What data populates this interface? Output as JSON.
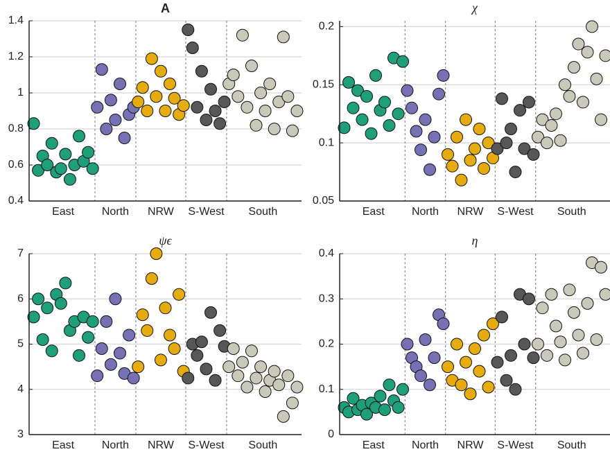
{
  "chart_data": [
    {
      "type": "scatter",
      "title": "A",
      "title_style": "bold",
      "ylim": [
        0.4,
        1.4
      ],
      "yticks": [
        0.4,
        0.6,
        0.8,
        1,
        1.2,
        1.4
      ],
      "xlim": [
        0,
        60
      ],
      "grid": true,
      "series": [
        {
          "name": "East",
          "color": "#1f9e7a",
          "x": [
            1,
            2,
            3,
            4,
            5,
            6,
            7,
            8,
            9,
            10,
            11,
            12,
            13,
            14
          ],
          "values": [
            0.83,
            0.57,
            0.65,
            0.6,
            0.72,
            0.56,
            0.58,
            0.66,
            0.52,
            0.6,
            0.76,
            0.62,
            0.67,
            0.58
          ]
        },
        {
          "name": "North",
          "color": "#7671b4",
          "x": [
            15,
            16,
            17,
            18,
            19,
            20,
            21,
            22,
            23
          ],
          "values": [
            0.92,
            1.13,
            0.8,
            0.96,
            0.85,
            1.05,
            0.75,
            0.88,
            0.92
          ]
        },
        {
          "name": "NRW",
          "color": "#e5ab0f",
          "x": [
            24,
            25,
            26,
            27,
            28,
            29,
            30,
            31,
            32,
            33,
            34
          ],
          "values": [
            0.95,
            1.03,
            0.9,
            1.19,
            0.98,
            1.12,
            0.9,
            1.05,
            0.97,
            0.88,
            0.93
          ]
        },
        {
          "name": "S-West",
          "color": "#575757",
          "x": [
            35,
            36,
            37,
            38,
            39,
            40,
            41,
            42,
            43
          ],
          "values": [
            1.35,
            1.25,
            0.92,
            1.12,
            0.85,
            1.02,
            0.9,
            0.83,
            0.95
          ]
        },
        {
          "name": "South",
          "color": "#c9c9b9",
          "x": [
            44,
            45,
            46,
            47,
            48,
            49,
            50,
            51,
            52,
            53,
            54,
            55,
            56,
            57,
            58,
            59
          ],
          "values": [
            1.05,
            1.1,
            0.98,
            1.32,
            0.92,
            1.15,
            0.82,
            1.0,
            0.9,
            1.05,
            0.8,
            0.95,
            1.31,
            0.98,
            0.79,
            0.9
          ]
        }
      ]
    },
    {
      "type": "scatter",
      "title": "χ",
      "title_style": "italic",
      "ylim": [
        0.05,
        0.205
      ],
      "yticks": [
        0.05,
        0.1,
        0.15,
        0.2
      ],
      "xlim": [
        0,
        60
      ],
      "grid": true,
      "series": [
        {
          "name": "East",
          "color": "#1f9e7a",
          "x": [
            1,
            2,
            3,
            4,
            5,
            6,
            7,
            8,
            9,
            10,
            11,
            12,
            13,
            14
          ],
          "values": [
            0.113,
            0.152,
            0.13,
            0.145,
            0.12,
            0.14,
            0.108,
            0.158,
            0.128,
            0.135,
            0.115,
            0.173,
            0.125,
            0.17
          ]
        },
        {
          "name": "North",
          "color": "#7671b4",
          "x": [
            15,
            16,
            17,
            18,
            19,
            20,
            21,
            22,
            23
          ],
          "values": [
            0.145,
            0.13,
            0.11,
            0.094,
            0.12,
            0.077,
            0.105,
            0.142,
            0.158
          ]
        },
        {
          "name": "NRW",
          "color": "#e5ab0f",
          "x": [
            24,
            25,
            26,
            27,
            28,
            29,
            30,
            31,
            32,
            33,
            34
          ],
          "values": [
            0.09,
            0.08,
            0.105,
            0.068,
            0.12,
            0.085,
            0.095,
            0.112,
            0.078,
            0.1,
            0.087
          ]
        },
        {
          "name": "S-West",
          "color": "#575757",
          "x": [
            35,
            36,
            37,
            38,
            39,
            40,
            41,
            42,
            43
          ],
          "values": [
            0.095,
            0.138,
            0.1,
            0.112,
            0.075,
            0.128,
            0.095,
            0.135,
            0.09
          ]
        },
        {
          "name": "South",
          "color": "#c9c9b9",
          "x": [
            44,
            45,
            46,
            47,
            48,
            49,
            50,
            51,
            52,
            53,
            54,
            55,
            56,
            57,
            58,
            59
          ],
          "values": [
            0.105,
            0.12,
            0.1,
            0.115,
            0.125,
            0.102,
            0.15,
            0.14,
            0.165,
            0.185,
            0.135,
            0.178,
            0.2,
            0.155,
            0.12,
            0.175
          ]
        }
      ]
    },
    {
      "type": "scatter",
      "title": "ψϵ",
      "title_style": "italic",
      "ylim": [
        3,
        7
      ],
      "yticks": [
        3,
        4,
        5,
        6,
        7
      ],
      "xlim": [
        0,
        60
      ],
      "grid": true,
      "series": [
        {
          "name": "East",
          "color": "#1f9e7a",
          "x": [
            1,
            2,
            3,
            4,
            5,
            6,
            7,
            8,
            9,
            10,
            11,
            12,
            13,
            14
          ],
          "values": [
            5.6,
            6.0,
            5.1,
            5.8,
            4.85,
            6.1,
            5.9,
            6.35,
            5.3,
            5.5,
            4.75,
            5.6,
            5.15,
            5.5
          ]
        },
        {
          "name": "North",
          "color": "#7671b4",
          "x": [
            15,
            16,
            17,
            18,
            19,
            20,
            21,
            22,
            23
          ],
          "values": [
            4.3,
            4.9,
            5.5,
            4.55,
            6.0,
            4.8,
            4.35,
            5.2,
            4.25
          ]
        },
        {
          "name": "NRW",
          "color": "#e5ab0f",
          "x": [
            24,
            25,
            26,
            27,
            28,
            29,
            30,
            31,
            32,
            33,
            34
          ],
          "values": [
            4.5,
            5.65,
            5.3,
            6.45,
            7.0,
            4.65,
            5.8,
            5.2,
            4.9,
            6.1,
            4.4
          ]
        },
        {
          "name": "S-West",
          "color": "#575757",
          "x": [
            35,
            36,
            37,
            38,
            39,
            40,
            41,
            42,
            43
          ],
          "values": [
            4.25,
            5.0,
            4.75,
            5.05,
            4.45,
            5.7,
            4.2,
            5.3,
            4.95
          ]
        },
        {
          "name": "South",
          "color": "#c9c9b9",
          "x": [
            44,
            45,
            46,
            47,
            48,
            49,
            50,
            51,
            52,
            53,
            54,
            55,
            56,
            57,
            58,
            59
          ],
          "values": [
            4.5,
            4.9,
            4.3,
            4.6,
            4.05,
            4.85,
            4.25,
            4.5,
            3.95,
            4.2,
            4.4,
            4.1,
            3.4,
            4.3,
            3.7,
            4.05
          ]
        }
      ]
    },
    {
      "type": "scatter",
      "title": "η",
      "title_style": "italic",
      "ylim": [
        0,
        0.4
      ],
      "yticks": [
        0,
        0.1,
        0.2,
        0.3,
        0.4
      ],
      "xlim": [
        0,
        60
      ],
      "grid": true,
      "series": [
        {
          "name": "East",
          "color": "#1f9e7a",
          "x": [
            1,
            2,
            3,
            4,
            5,
            6,
            7,
            8,
            9,
            10,
            11,
            12,
            13,
            14
          ],
          "values": [
            0.06,
            0.05,
            0.08,
            0.055,
            0.065,
            0.045,
            0.07,
            0.06,
            0.085,
            0.055,
            0.11,
            0.075,
            0.06,
            0.1
          ]
        },
        {
          "name": "North",
          "color": "#7671b4",
          "x": [
            15,
            16,
            17,
            18,
            19,
            20,
            21,
            22,
            23
          ],
          "values": [
            0.2,
            0.17,
            0.15,
            0.13,
            0.21,
            0.11,
            0.17,
            0.265,
            0.245
          ]
        },
        {
          "name": "NRW",
          "color": "#e5ab0f",
          "x": [
            24,
            25,
            26,
            27,
            28,
            29,
            30,
            31,
            32,
            33,
            34
          ],
          "values": [
            0.15,
            0.12,
            0.2,
            0.11,
            0.16,
            0.09,
            0.19,
            0.14,
            0.22,
            0.105,
            0.245
          ]
        },
        {
          "name": "S-West",
          "color": "#575757",
          "x": [
            35,
            36,
            37,
            38,
            39,
            40,
            41,
            42,
            43
          ],
          "values": [
            0.16,
            0.26,
            0.12,
            0.175,
            0.1,
            0.31,
            0.2,
            0.3,
            0.17
          ]
        },
        {
          "name": "South",
          "color": "#c9c9b9",
          "x": [
            44,
            45,
            46,
            47,
            48,
            49,
            50,
            51,
            52,
            53,
            54,
            55,
            56,
            57,
            58,
            59
          ],
          "values": [
            0.2,
            0.28,
            0.175,
            0.31,
            0.24,
            0.205,
            0.165,
            0.32,
            0.27,
            0.22,
            0.18,
            0.29,
            0.38,
            0.21,
            0.37,
            0.31
          ]
        }
      ]
    }
  ]
}
